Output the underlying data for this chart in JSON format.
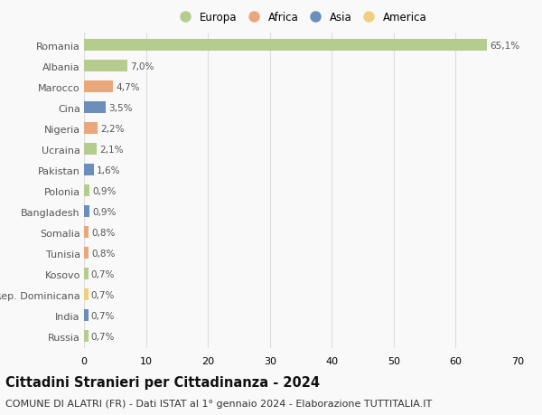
{
  "countries": [
    "Romania",
    "Albania",
    "Marocco",
    "Cina",
    "Nigeria",
    "Ucraina",
    "Pakistan",
    "Polonia",
    "Bangladesh",
    "Somalia",
    "Tunisia",
    "Kosovo",
    "Rep. Dominicana",
    "India",
    "Russia"
  ],
  "values": [
    65.1,
    7.0,
    4.7,
    3.5,
    2.2,
    2.1,
    1.6,
    0.9,
    0.9,
    0.8,
    0.8,
    0.7,
    0.7,
    0.7,
    0.7
  ],
  "labels": [
    "65,1%",
    "7,0%",
    "4,7%",
    "3,5%",
    "2,2%",
    "2,1%",
    "1,6%",
    "0,9%",
    "0,9%",
    "0,8%",
    "0,8%",
    "0,7%",
    "0,7%",
    "0,7%",
    "0,7%"
  ],
  "continents": [
    "Europa",
    "Europa",
    "Africa",
    "Asia",
    "Africa",
    "Europa",
    "Asia",
    "Europa",
    "Asia",
    "Africa",
    "Africa",
    "Europa",
    "America",
    "Asia",
    "Europa"
  ],
  "continent_colors": {
    "Europa": "#b5cc8e",
    "Africa": "#e8a87c",
    "Asia": "#6b8fba",
    "America": "#f0d080"
  },
  "legend_order": [
    "Europa",
    "Africa",
    "Asia",
    "America"
  ],
  "title": "Cittadini Stranieri per Cittadinanza - 2024",
  "subtitle": "COMUNE DI ALATRI (FR) - Dati ISTAT al 1° gennaio 2024 - Elaborazione TUTTITALIA.IT",
  "xlim": [
    0,
    70
  ],
  "xticks": [
    0,
    10,
    20,
    30,
    40,
    50,
    60,
    70
  ],
  "background_color": "#f9f9f9",
  "grid_color": "#dddddd",
  "bar_height": 0.55,
  "title_fontsize": 10.5,
  "subtitle_fontsize": 8,
  "label_fontsize": 7.5,
  "tick_fontsize": 8,
  "legend_fontsize": 8.5
}
